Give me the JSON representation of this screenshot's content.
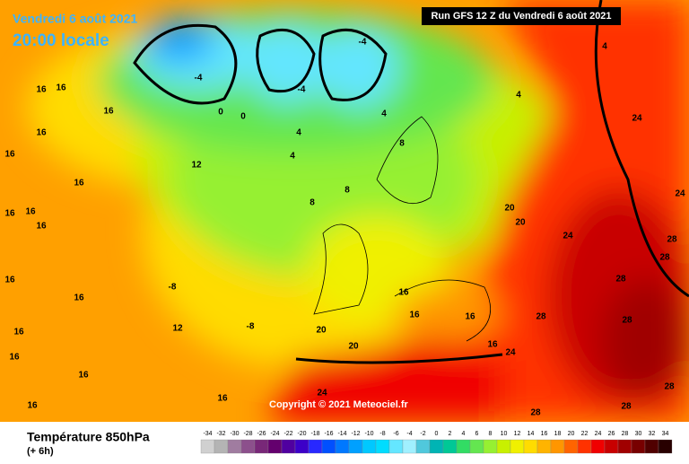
{
  "header": {
    "date": "Vendredi 6 août 2021",
    "time": "20:00 locale",
    "run": "Run GFS 12 Z du Vendredi 6 août 2021"
  },
  "copyright": "Copyright © 2021 Meteociel.fr",
  "footer": {
    "title": "Température 850hPa",
    "subtitle": "(+ 6h)"
  },
  "legend": {
    "values": [
      -34,
      -32,
      -30,
      -28,
      -26,
      -24,
      -22,
      -20,
      -18,
      -16,
      -14,
      -12,
      -10,
      -8,
      -6,
      -4,
      -2,
      0,
      2,
      4,
      6,
      8,
      10,
      12,
      14,
      16,
      18,
      20,
      22,
      24,
      26,
      28,
      30,
      32,
      34
    ],
    "colors": [
      "#d0d0d0",
      "#b4b4b4",
      "#a07ca0",
      "#8c508c",
      "#782878",
      "#64006e",
      "#5000a0",
      "#3c00c8",
      "#2828ff",
      "#0050ff",
      "#0078ff",
      "#00a0ff",
      "#00c8ff",
      "#00dcff",
      "#64e6ff",
      "#a0f0ff",
      "#50c8dc",
      "#00b4b4",
      "#00c896",
      "#32dc64",
      "#64e650",
      "#96f032",
      "#c8f000",
      "#f0f000",
      "#ffdc00",
      "#ffb400",
      "#ff9600",
      "#ff6400",
      "#ff3200",
      "#f00000",
      "#c80000",
      "#a00000",
      "#780000",
      "#500000",
      "#280000"
    ]
  },
  "contour_labels": [
    16,
    16,
    16,
    16,
    16,
    16,
    16,
    16,
    16,
    16,
    16,
    16,
    16,
    16,
    16,
    16,
    12,
    12,
    -8,
    -8,
    4,
    4,
    4,
    4,
    4,
    -4,
    -4,
    -4,
    0,
    0,
    8,
    8,
    8,
    20,
    20,
    20,
    20,
    24,
    24,
    24,
    24,
    24,
    28,
    28,
    28,
    28,
    28,
    28,
    28,
    28,
    16,
    16,
    16,
    16
  ]
}
